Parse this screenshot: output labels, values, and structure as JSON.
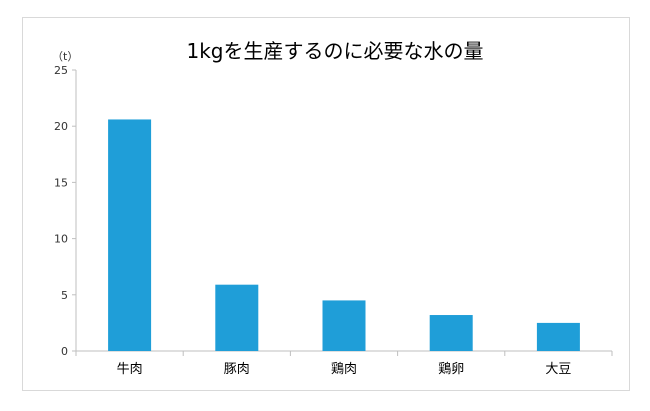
{
  "chart_data": {
    "type": "bar",
    "title": "1kgを生産するのに必要な水の量",
    "unit_label": "（t）",
    "categories": [
      "牛肉",
      "豚肉",
      "鶏肉",
      "鶏卵",
      "大豆"
    ],
    "values": [
      20.6,
      5.9,
      4.5,
      3.2,
      2.5
    ],
    "ylim": [
      0,
      25
    ],
    "yticks": [
      0,
      5,
      10,
      15,
      20,
      25
    ],
    "grid": false,
    "bar_color": "#1f9ed8",
    "axis_color": "#bfbfbf"
  }
}
